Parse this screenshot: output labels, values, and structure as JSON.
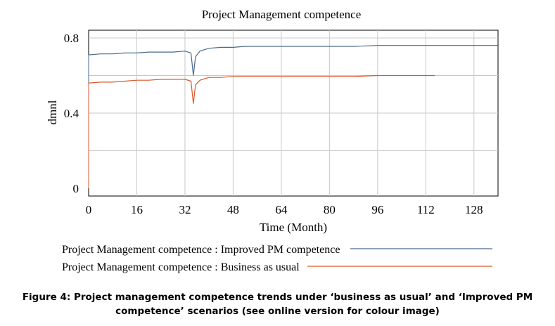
{
  "chart_data": {
    "type": "line",
    "title": "Project Management competence",
    "xlabel": "Time (Month)",
    "ylabel": "dmnl",
    "xlim": [
      0,
      136
    ],
    "ylim": [
      0,
      0.8
    ],
    "x_ticks": [
      "0",
      "16",
      "32",
      "48",
      "64",
      "80",
      "96",
      "112",
      "128"
    ],
    "y_ticks": [
      "0",
      "0.4",
      "0.8"
    ],
    "grid": true,
    "legend_position": "bottom",
    "series": [
      {
        "name": "Project Management competence : Improved PM competence",
        "color": "#4a6a8c",
        "points": [
          [
            0,
            0.71
          ],
          [
            4,
            0.715
          ],
          [
            8,
            0.715
          ],
          [
            12,
            0.72
          ],
          [
            16,
            0.72
          ],
          [
            20,
            0.725
          ],
          [
            24,
            0.725
          ],
          [
            28,
            0.725
          ],
          [
            32,
            0.73
          ],
          [
            34,
            0.72
          ],
          [
            34.8,
            0.6
          ],
          [
            35.5,
            0.7
          ],
          [
            37,
            0.73
          ],
          [
            40,
            0.745
          ],
          [
            44,
            0.75
          ],
          [
            48,
            0.75
          ],
          [
            52,
            0.755
          ],
          [
            56,
            0.755
          ],
          [
            64,
            0.755
          ],
          [
            72,
            0.755
          ],
          [
            80,
            0.755
          ],
          [
            88,
            0.755
          ],
          [
            96,
            0.76
          ],
          [
            104,
            0.76
          ],
          [
            112,
            0.76
          ],
          [
            120,
            0.76
          ],
          [
            128,
            0.76
          ],
          [
            136,
            0.76
          ]
        ]
      },
      {
        "name": "Project Management competence : Business as usual",
        "color": "#d9572b",
        "points": [
          [
            0,
            0.56
          ],
          [
            4,
            0.565
          ],
          [
            8,
            0.565
          ],
          [
            12,
            0.57
          ],
          [
            16,
            0.575
          ],
          [
            20,
            0.575
          ],
          [
            24,
            0.58
          ],
          [
            28,
            0.58
          ],
          [
            32,
            0.58
          ],
          [
            34,
            0.57
          ],
          [
            34.8,
            0.45
          ],
          [
            35.5,
            0.55
          ],
          [
            37,
            0.575
          ],
          [
            40,
            0.59
          ],
          [
            44,
            0.59
          ],
          [
            48,
            0.595
          ],
          [
            56,
            0.595
          ],
          [
            64,
            0.595
          ],
          [
            72,
            0.595
          ],
          [
            80,
            0.595
          ],
          [
            88,
            0.595
          ],
          [
            96,
            0.6
          ],
          [
            104,
            0.6
          ],
          [
            112,
            0.6
          ],
          [
            115,
            0.6
          ]
        ]
      }
    ]
  },
  "caption": {
    "line1": "Figure 4: Project management competence trends under ‘business as usual’ and ‘Improved PM",
    "line2": "competence’ scenarios (see online version for colour image)"
  }
}
